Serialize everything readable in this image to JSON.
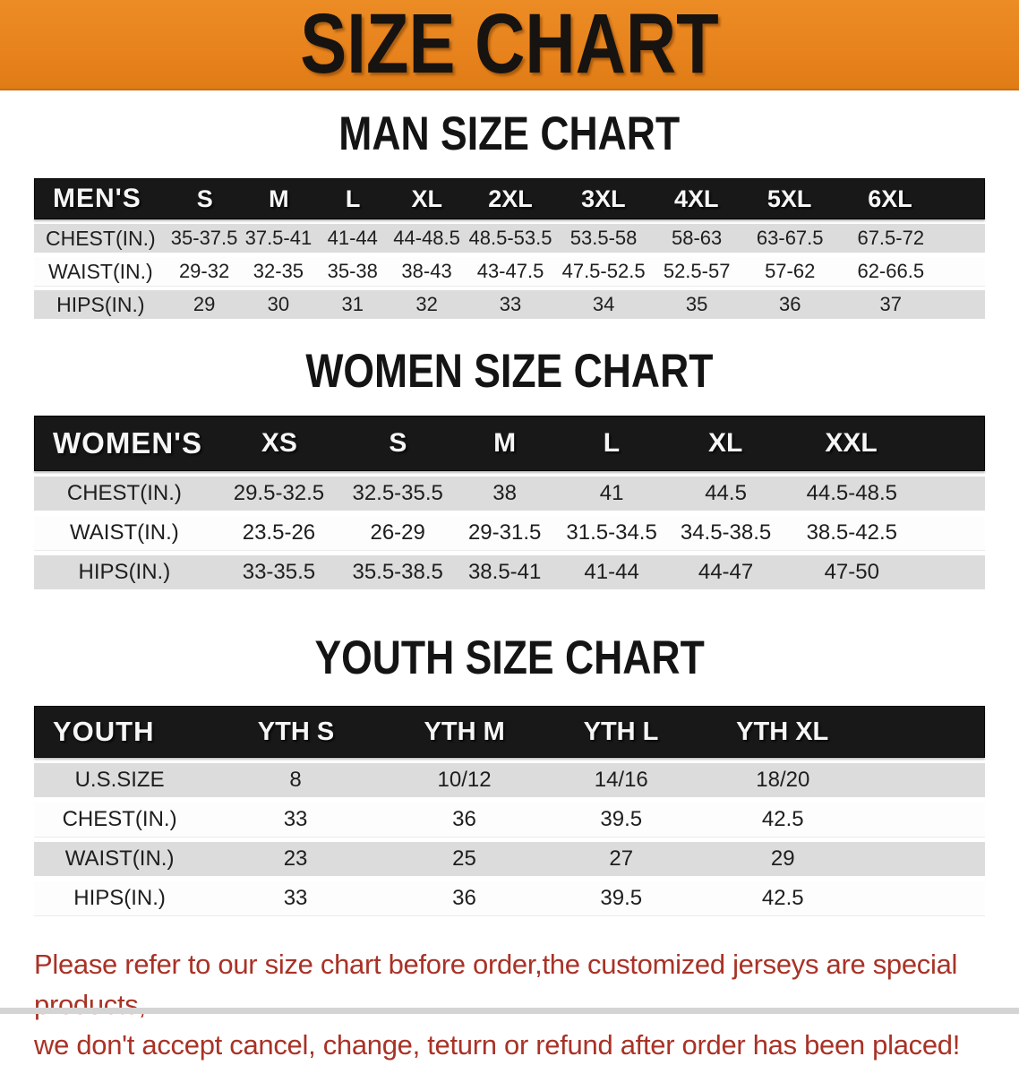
{
  "banner": {
    "title": "SIZE CHART"
  },
  "sections": [
    {
      "heading": "MAN SIZE CHART",
      "table": {
        "header": [
          "MEN'S",
          "S",
          "M",
          "L",
          "XL",
          "2XL",
          "3XL",
          "4XL",
          "5XL",
          "6XL"
        ],
        "rows": [
          {
            "label": "CHEST(IN.)",
            "values": [
              "35-37.5",
              "37.5-41",
              "41-44",
              "44-48.5",
              "48.5-53.5",
              "53.5-58",
              "58-63",
              "63-67.5",
              "67.5-72"
            ]
          },
          {
            "label": "WAIST(IN.)",
            "values": [
              "29-32",
              "32-35",
              "35-38",
              "38-43",
              "43-47.5",
              "47.5-52.5",
              "52.5-57",
              "57-62",
              "62-66.5"
            ]
          },
          {
            "label": "HIPS(IN.)",
            "values": [
              "29",
              "30",
              "31",
              "32",
              "33",
              "34",
              "35",
              "36",
              "37"
            ]
          }
        ]
      }
    },
    {
      "heading": "WOMEN SIZE CHART",
      "table": {
        "header": [
          "WOMEN'S",
          "XS",
          "S",
          "M",
          "L",
          "XL",
          "XXL"
        ],
        "rows": [
          {
            "label": "CHEST(IN.)",
            "values": [
              "29.5-32.5",
              "32.5-35.5",
              "38",
              "41",
              "44.5",
              "44.5-48.5"
            ]
          },
          {
            "label": "WAIST(IN.)",
            "values": [
              "23.5-26",
              "26-29",
              "29-31.5",
              "31.5-34.5",
              "34.5-38.5",
              "38.5-42.5"
            ]
          },
          {
            "label": "HIPS(IN.)",
            "values": [
              "33-35.5",
              "35.5-38.5",
              "38.5-41",
              "41-44",
              "44-47",
              "47-50"
            ]
          }
        ]
      }
    },
    {
      "heading": "YOUTH SIZE CHART",
      "table": {
        "header": [
          "YOUTH",
          "YTH S",
          "YTH M",
          "YTH L",
          "YTH XL"
        ],
        "rows": [
          {
            "label": "U.S.SIZE",
            "values": [
              "8",
              "10/12",
              "14/16",
              "18/20"
            ]
          },
          {
            "label": "CHEST(IN.)",
            "values": [
              "33",
              "36",
              "39.5",
              "42.5"
            ]
          },
          {
            "label": "WAIST(IN.)",
            "values": [
              "23",
              "25",
              "27",
              "29"
            ]
          },
          {
            "label": "HIPS(IN.)",
            "values": [
              "33",
              "36",
              "39.5",
              "42.5"
            ]
          }
        ]
      }
    }
  ],
  "footer": {
    "line1": "Please refer to our size chart before order,the customized jerseys are special products,",
    "line2": "we don't accept cancel, change, teturn or refund after order has been placed!"
  },
  "colors": {
    "banner_bg": "#e8831d",
    "banner_text": "#161310",
    "header_band_bg": "#181818",
    "header_band_text": "#f6f6f6",
    "stripe_gray": "#dcdcdc",
    "stripe_white": "#fdfdfd",
    "footer_red": "#a93226"
  }
}
